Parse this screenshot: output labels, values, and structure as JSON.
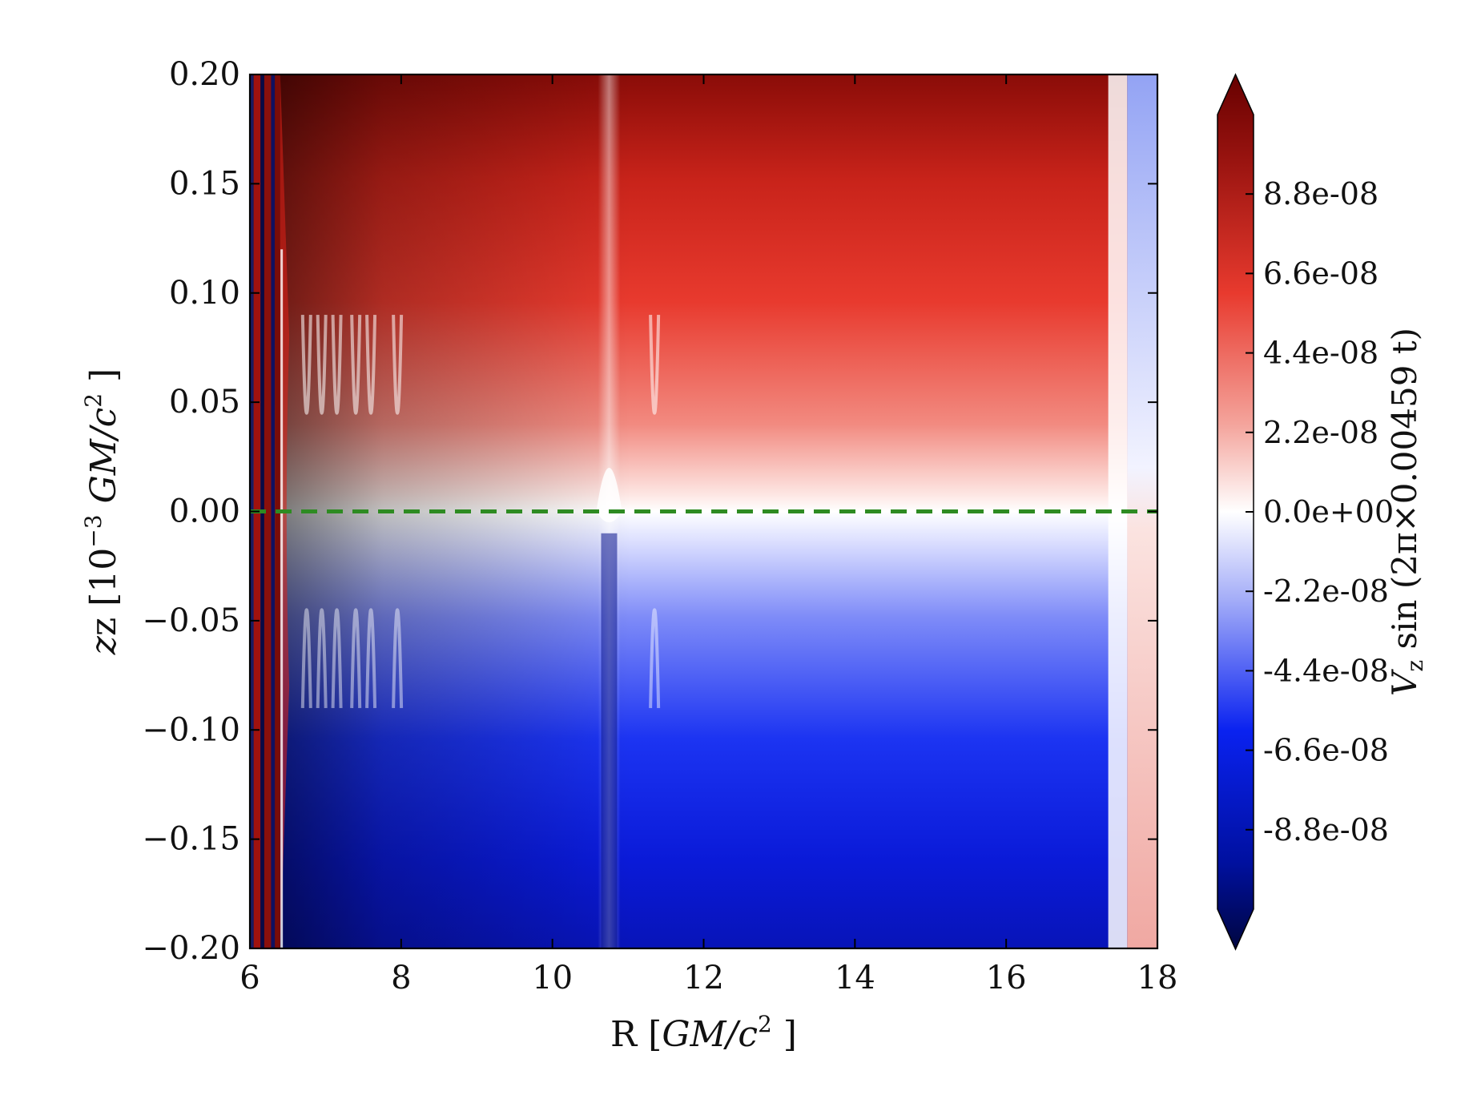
{
  "chart_data": {
    "type": "heatmap",
    "title": "",
    "xlabel": {
      "pre": "R [",
      "var": "GM/c",
      "sup": "2",
      "post": " ]"
    },
    "ylabel": {
      "pre": "z [10",
      "exp": "−3",
      "var": " GM/c",
      "sup": "2",
      "post": " ]"
    },
    "xlim": [
      6,
      18
    ],
    "ylim": [
      -0.2,
      0.2
    ],
    "x_ticks": [
      "6",
      "8",
      "10",
      "12",
      "14",
      "16",
      "18"
    ],
    "y_ticks": [
      "0.20",
      "0.15",
      "0.10",
      "0.05",
      "0.00",
      "−0.05",
      "−0.10",
      "−0.15",
      "−0.20"
    ],
    "x_tick_values": [
      6,
      8,
      10,
      12,
      14,
      16,
      18
    ],
    "y_tick_values": [
      0.2,
      0.15,
      0.1,
      0.05,
      0.0,
      -0.05,
      -0.1,
      -0.15,
      -0.2
    ],
    "colorbar": {
      "label": {
        "v": "V",
        "sub": "z",
        "rest": " sin (2π×0.00459 t)"
      },
      "range": [
        -1.1e-07,
        1.1e-07
      ],
      "extend": "both",
      "tick_labels": [
        "8.8e-08",
        "6.6e-08",
        "4.4e-08",
        "2.2e-08",
        "0.0e+00",
        "-2.2e-08",
        "-4.4e-08",
        "-6.6e-08",
        "-8.8e-08"
      ],
      "tick_values": [
        8.8e-08,
        6.6e-08,
        4.4e-08,
        2.2e-08,
        0,
        -2.2e-08,
        -4.4e-08,
        -6.6e-08,
        -8.8e-08
      ],
      "colormap": "seismic",
      "colors": {
        "top": "#670000",
        "red": "#e83a2e",
        "mid": "#ffffff",
        "blue": "#0a22f0",
        "bottom": "#000640"
      }
    },
    "field_description": {
      "upper_half": "positive (red), strongest near inner boundary R≈6.5, decreasing outward",
      "lower_half": "negative (blue), mirror of upper half",
      "notable_features": [
        {
          "R": 10.75,
          "feature": "narrow vertical ridge crossing the midplane"
        },
        {
          "R": [
            6.0,
            6.4
          ],
          "feature": "thin alternating red/blue strips at inner edge"
        },
        {
          "R": [
            17.3,
            18.0
          ],
          "feature": "sign-reversed outer strip (blue above, pink below)"
        }
      ]
    },
    "reference_line": {
      "y": 0.0,
      "style": "dashed",
      "color": "#2e8b22"
    }
  }
}
